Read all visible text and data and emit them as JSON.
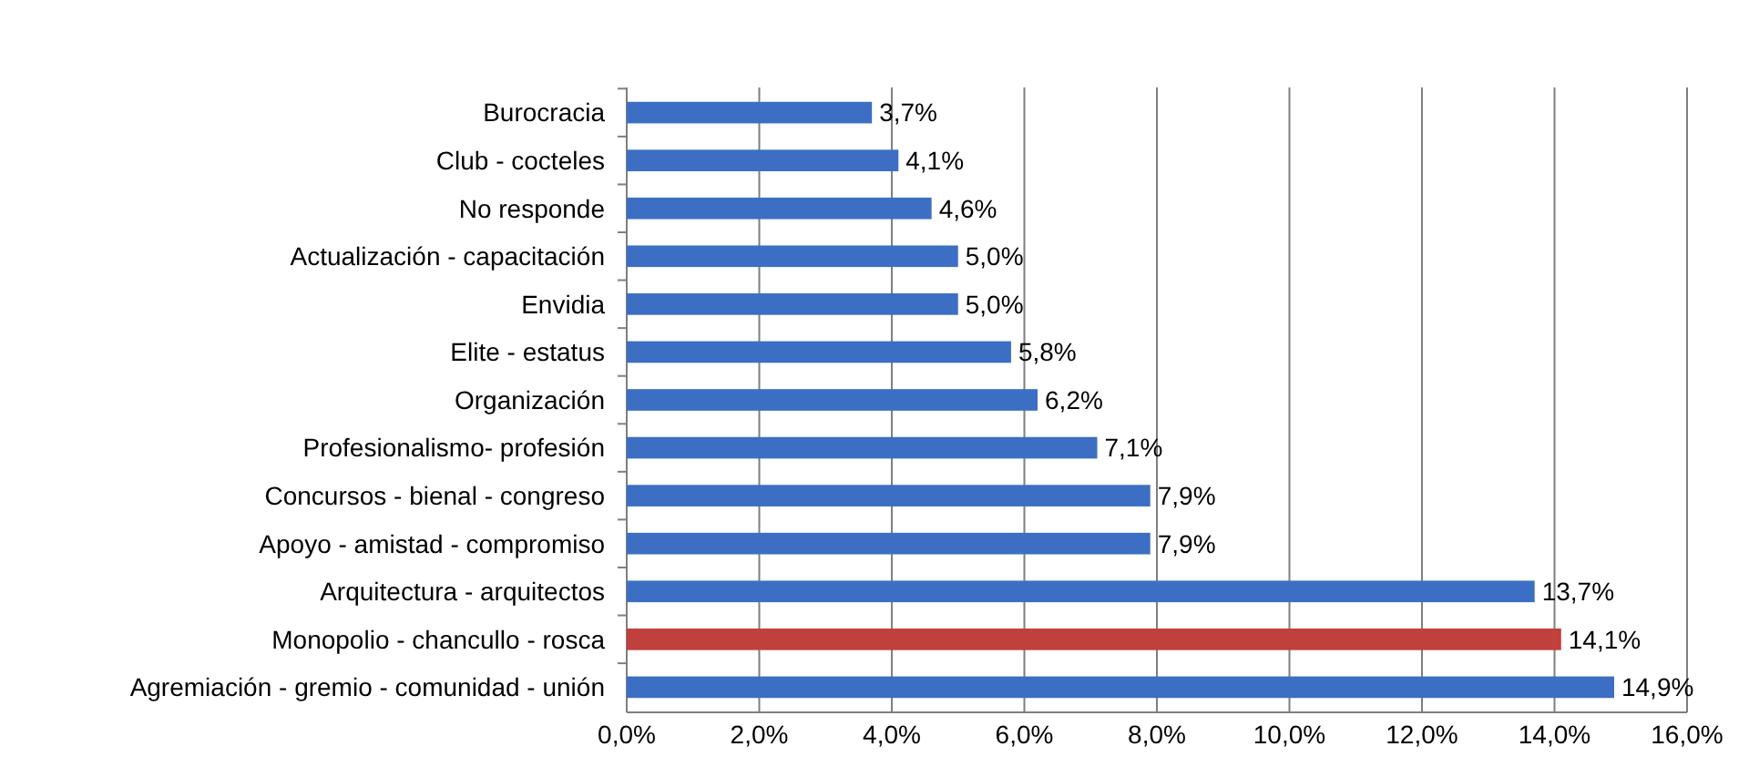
{
  "chart_data": {
    "type": "bar",
    "orientation": "horizontal",
    "categories": [
      "Burocracia",
      "Club - cocteles",
      "No responde",
      "Actualización - capacitación",
      "Envidia",
      "Elite - estatus",
      "Organización",
      "Profesionalismo- profesión",
      "Concursos - bienal - congreso",
      "Apoyo - amistad - compromiso",
      "Arquitectura - arquitectos",
      "Monopolio - chancullo - rosca",
      "Agremiación - gremio - comunidad - unión"
    ],
    "values": [
      3.7,
      4.1,
      4.6,
      5.0,
      5.0,
      5.8,
      6.2,
      7.1,
      7.9,
      7.9,
      13.7,
      14.1,
      14.9
    ],
    "value_labels": [
      "3,7%",
      "4,1%",
      "4,6%",
      "5,0%",
      "5,0%",
      "5,8%",
      "6,2%",
      "7,1%",
      "7,9%",
      "7,9%",
      "13,7%",
      "14,1%",
      "14,9%"
    ],
    "colors": [
      "#3c6fc4",
      "#3c6fc4",
      "#3c6fc4",
      "#3c6fc4",
      "#3c6fc4",
      "#3c6fc4",
      "#3c6fc4",
      "#3c6fc4",
      "#3c6fc4",
      "#3c6fc4",
      "#3c6fc4",
      "#c0403c",
      "#3c6fc4"
    ],
    "xlim": [
      0,
      16
    ],
    "xticks": [
      {
        "value": 0,
        "label": "0,0%"
      },
      {
        "value": 2,
        "label": "2,0%"
      },
      {
        "value": 4,
        "label": "4,0%"
      },
      {
        "value": 6,
        "label": "6,0%"
      },
      {
        "value": 8,
        "label": "8,0%"
      },
      {
        "value": 10,
        "label": "10,0%"
      },
      {
        "value": 12,
        "label": "12,0%"
      },
      {
        "value": 14,
        "label": "14,0%"
      },
      {
        "value": 16,
        "label": "16,0%"
      }
    ],
    "grid": "x"
  }
}
